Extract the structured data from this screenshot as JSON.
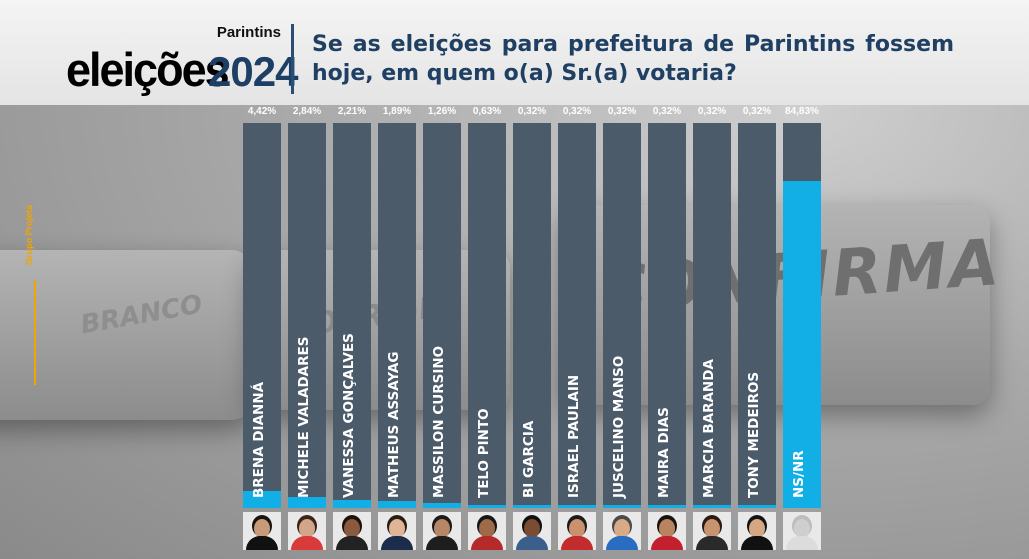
{
  "header": {
    "city": "Parintins",
    "word": "eleições",
    "year": "2024",
    "question": "Se as eleições para prefeitura de Parintins fossem hoje, em quem o(a) Sr.(a) votaria?"
  },
  "source_label": "Grupo Projeta",
  "background_text": {
    "confirma": "CONFIRMA",
    "corrige": "CORRIGE",
    "branco": "BRANCO"
  },
  "colors": {
    "bar_track": "#4c5b6a",
    "bar_fill": "#12aee6",
    "title": "#1f3f63",
    "accent": "#f0a500"
  },
  "chart_data": {
    "type": "bar",
    "title": "Se as eleições para prefeitura de Parintins fossem hoje, em quem o(a) Sr.(a) votaria?",
    "ylim": [
      0,
      100
    ],
    "categories": [
      "BRENA DIANNÁ",
      "MICHELE VALADARES",
      "VANESSA GONÇALVES",
      "MATHEUS ASSAYAG",
      "MASSILON CURSINO",
      "TELO PINTO",
      "BI GARCIA",
      "ISRAEL PAULAIN",
      "JUSCELINO MANSO",
      "MAIRA DIAS",
      "MARCIA BARANDA",
      "TONY MEDEIROS",
      "NS/NR"
    ],
    "values": [
      4.42,
      2.84,
      2.21,
      1.89,
      1.26,
      0.63,
      0.32,
      0.32,
      0.32,
      0.32,
      0.32,
      0.32,
      84.83
    ],
    "value_labels": [
      "4,42%",
      "2,84%",
      "2,21%",
      "1,89%",
      "1,26%",
      "0,63%",
      "0,32%",
      "0,32%",
      "0,32%",
      "0,32%",
      "0,32%",
      "0,32%",
      "84,83%"
    ],
    "photo_icons": [
      "candidate-photo",
      "candidate-photo",
      "candidate-photo",
      "candidate-photo",
      "candidate-photo",
      "candidate-photo",
      "candidate-photo",
      "candidate-photo",
      "candidate-photo",
      "candidate-photo",
      "candidate-photo",
      "candidate-photo",
      "unknown-person-icon"
    ],
    "photo_colors": [
      {
        "skin": "#c79a7a",
        "hair": "#1a1410",
        "cloth": "#111111"
      },
      {
        "skin": "#d3a58a",
        "hair": "#3a2518",
        "cloth": "#d93a3a"
      },
      {
        "skin": "#8a5a3c",
        "hair": "#1b120c",
        "cloth": "#222222"
      },
      {
        "skin": "#e0b497",
        "hair": "#2a1d14",
        "cloth": "#1b2d4a"
      },
      {
        "skin": "#b78664",
        "hair": "#1a1a1a",
        "cloth": "#1e1e1e"
      },
      {
        "skin": "#9d6a4a",
        "hair": "#161616",
        "cloth": "#b52a2a"
      },
      {
        "skin": "#7a4c34",
        "hair": "#101010",
        "cloth": "#3c5e8a"
      },
      {
        "skin": "#c9926c",
        "hair": "#1c1c1c",
        "cloth": "#c22c2c"
      },
      {
        "skin": "#d8aa85",
        "hair": "#4a4a4a",
        "cloth": "#2a6cc0"
      },
      {
        "skin": "#b88460",
        "hair": "#1a120c",
        "cloth": "#c21f2f"
      },
      {
        "skin": "#c7946f",
        "hair": "#2b1a10",
        "cloth": "#2a2a2a"
      },
      {
        "skin": "#d6a784",
        "hair": "#141414",
        "cloth": "#111111"
      },
      {
        "skin": "#cfcfcf",
        "hair": "#bdbdbd",
        "cloth": "#dcdcdc"
      }
    ]
  }
}
